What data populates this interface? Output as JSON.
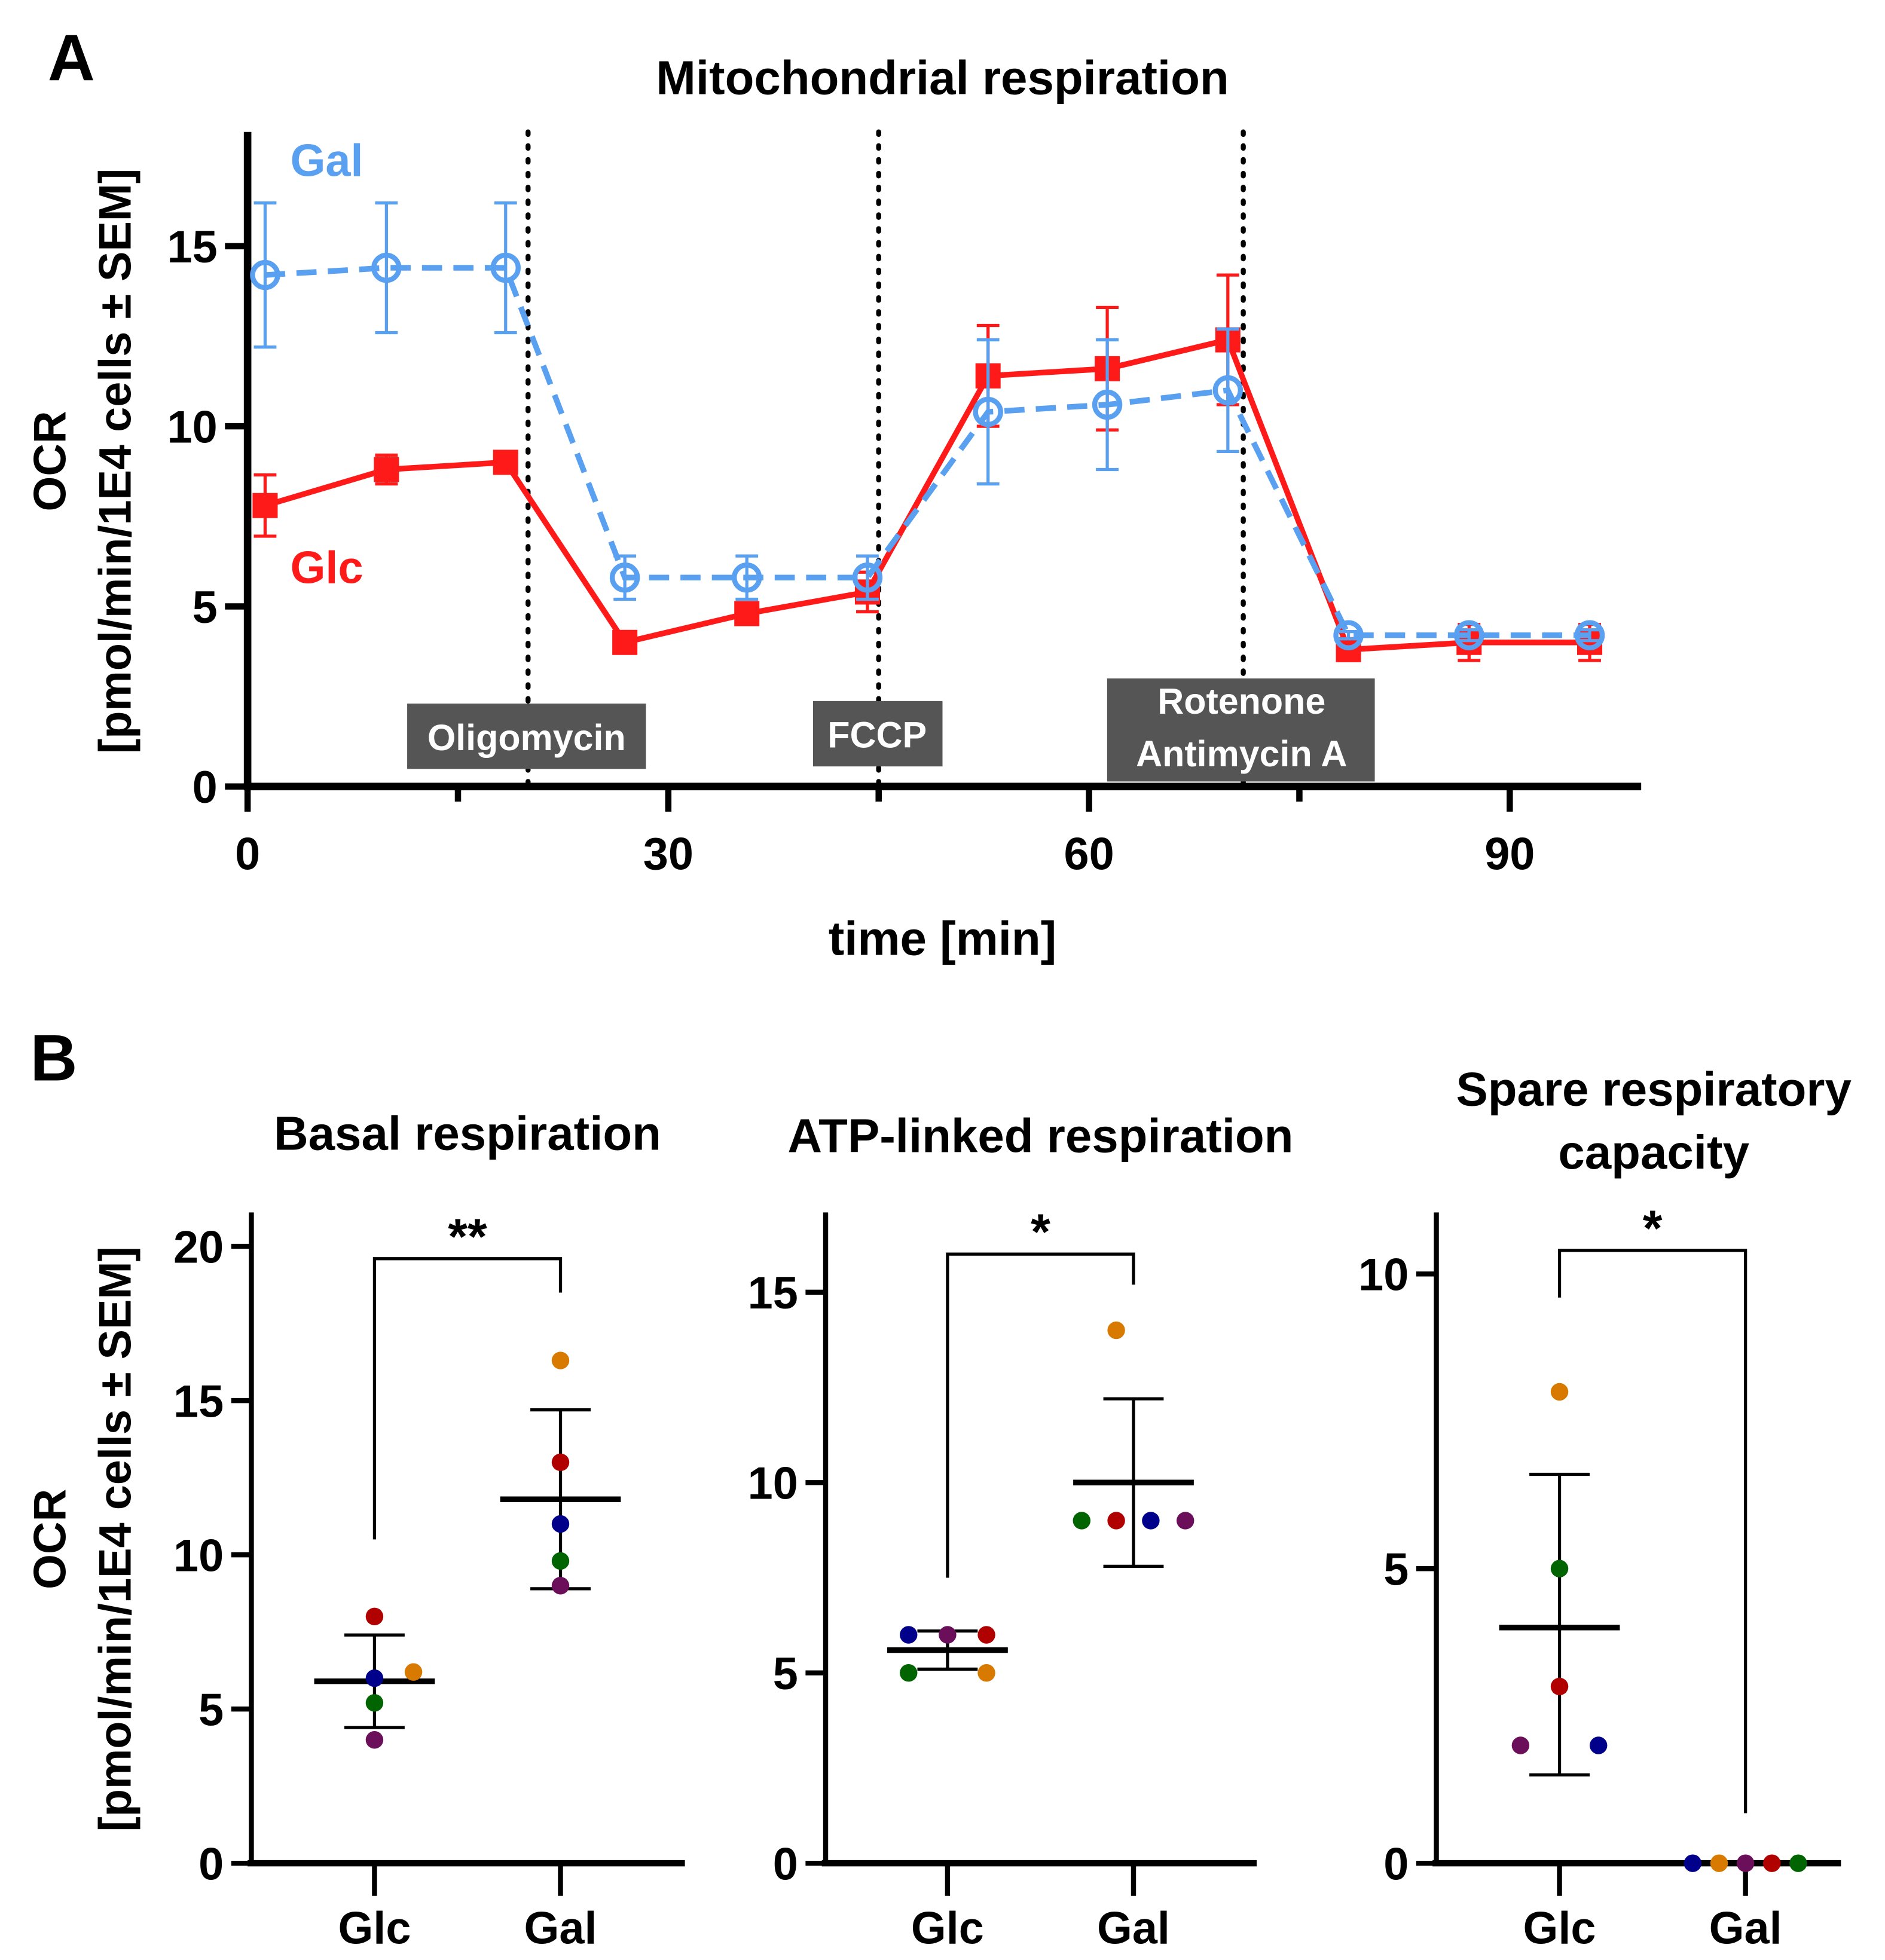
{
  "chart_data": [
    {
      "panel_label": "A",
      "type": "line",
      "title": "Mitochondrial respiration",
      "xlabel": "time [min]",
      "ylabel_line1": "OCR",
      "ylabel_line2": "[pmol/min/1E4 cells ± SEM]",
      "xlim": [
        0,
        99
      ],
      "ylim": [
        0,
        18
      ],
      "xticks": [
        0,
        30,
        60,
        90
      ],
      "xticks_minor": [
        15,
        45,
        75
      ],
      "yticks": [
        0,
        5,
        10,
        15
      ],
      "x": [
        1.25,
        9.9,
        18.4,
        26.9,
        35.6,
        44.2,
        52.8,
        61.3,
        69.9,
        78.5,
        87.1,
        95.7
      ],
      "series": [
        {
          "name": "Glc",
          "color": "#ff1a1a",
          "style": "solid",
          "marker": "square",
          "values": [
            7.8,
            8.8,
            9.0,
            4.0,
            4.8,
            5.4,
            11.4,
            11.6,
            12.4,
            3.8,
            4.0,
            4.0
          ],
          "sem": [
            0.85,
            0.4,
            0.3,
            0.15,
            0.15,
            0.55,
            1.4,
            1.7,
            1.8,
            0.15,
            0.5,
            0.5
          ]
        },
        {
          "name": "Gal",
          "color": "#5aa0f0",
          "style": "dashed",
          "marker": "open-circle",
          "values": [
            14.2,
            14.4,
            14.4,
            5.8,
            5.8,
            5.8,
            10.4,
            10.6,
            11.0,
            4.2,
            4.2,
            4.2
          ],
          "sem": [
            2.0,
            1.8,
            1.8,
            0.6,
            0.6,
            0.6,
            2.0,
            1.8,
            1.7,
            0.1,
            0.15,
            0.15
          ]
        }
      ],
      "injections": [
        {
          "time": 20,
          "label": "Oligomycin"
        },
        {
          "time": 45,
          "label": "FCCP"
        },
        {
          "time": 71,
          "label": "Rotenone Antimycin A",
          "line1": "Rotenone",
          "line2": "Antimycin A"
        }
      ]
    },
    {
      "panel_label": "B",
      "type": "scatter",
      "title": "Basal respiration",
      "ylabel_line1": "OCR",
      "ylabel_line2": "[pmol/min/1E4 cells ± SEM]",
      "categories": [
        "Glc",
        "Gal"
      ],
      "ylim": [
        0,
        21
      ],
      "yticks": [
        0,
        5,
        10,
        15,
        20
      ],
      "significance": "**",
      "groups": [
        {
          "name": "Glc",
          "mean": 5.9,
          "sem_low": 4.4,
          "sem_high": 7.4,
          "points": [
            {
              "v": 8.0,
              "c": "#b00000"
            },
            {
              "v": 6.0,
              "c": "#00008b"
            },
            {
              "v": 6.2,
              "c": "#d97a00",
              "off": 1
            },
            {
              "v": 5.2,
              "c": "#006400"
            },
            {
              "v": 4.0,
              "c": "#6b0f5a"
            }
          ]
        },
        {
          "name": "Gal",
          "mean": 11.8,
          "sem_low": 8.9,
          "sem_high": 14.7,
          "points": [
            {
              "v": 16.3,
              "c": "#d97a00"
            },
            {
              "v": 13.0,
              "c": "#b00000"
            },
            {
              "v": 11.0,
              "c": "#00008b"
            },
            {
              "v": 9.8,
              "c": "#006400"
            },
            {
              "v": 9.0,
              "c": "#6b0f5a"
            }
          ]
        }
      ],
      "bracket": {
        "top": 19.6,
        "left_end": 10.5,
        "right_end": 18.5
      }
    },
    {
      "type": "scatter",
      "title": "ATP-linked respiration",
      "categories": [
        "Glc",
        "Gal"
      ],
      "ylim": [
        0,
        15.6
      ],
      "yticks": [
        0,
        5,
        10,
        15
      ],
      "significance": "*",
      "groups": [
        {
          "name": "Glc",
          "mean": 5.6,
          "sem_low": 5.1,
          "sem_high": 6.1,
          "points": [
            {
              "v": 6.0,
              "c": "#00008b",
              "off": -1
            },
            {
              "v": 6.0,
              "c": "#6b0f5a",
              "off": 0
            },
            {
              "v": 6.0,
              "c": "#b00000",
              "off": 1
            },
            {
              "v": 5.0,
              "c": "#006400",
              "off": -1
            },
            {
              "v": 5.0,
              "c": "#d97a00",
              "off": 1
            }
          ]
        },
        {
          "name": "Gal",
          "mean": 10.0,
          "sem_low": 7.8,
          "sem_high": 12.2,
          "points": [
            {
              "v": 14.0,
              "c": "#d97a00",
              "off": -0.5
            },
            {
              "v": 9.0,
              "c": "#006400",
              "off": -1.5
            },
            {
              "v": 9.0,
              "c": "#b00000",
              "off": -0.5
            },
            {
              "v": 9.0,
              "c": "#00008b",
              "off": 0.5
            },
            {
              "v": 9.0,
              "c": "#6b0f5a",
              "off": 1.5
            }
          ]
        }
      ],
      "bracket": {
        "top": 16.0,
        "left_end": 7.5,
        "right_end": 15.2
      }
    },
    {
      "type": "scatter",
      "title": "Spare respiratory capacity",
      "title_line1": "Spare respiratory",
      "title_line2": "capacity",
      "categories": [
        "Glc",
        "Gal"
      ],
      "ylim": [
        0,
        10.5
      ],
      "yticks": [
        0,
        5,
        10
      ],
      "significance": "*",
      "groups": [
        {
          "name": "Glc",
          "mean": 4.0,
          "sem_low": 1.5,
          "sem_high": 6.6,
          "points": [
            {
              "v": 8.0,
              "c": "#d97a00"
            },
            {
              "v": 5.0,
              "c": "#006400"
            },
            {
              "v": 3.0,
              "c": "#b00000"
            },
            {
              "v": 2.0,
              "c": "#6b0f5a",
              "off": -1
            },
            {
              "v": 2.0,
              "c": "#00008b",
              "off": 1
            }
          ]
        },
        {
          "name": "Gal",
          "mean": 0,
          "sem_low": 0,
          "sem_high": 0,
          "points": [
            {
              "v": 0,
              "c": "#00008b",
              "off": -2
            },
            {
              "v": 0,
              "c": "#d97a00",
              "off": -1
            },
            {
              "v": 0,
              "c": "#6b0f5a",
              "off": 0
            },
            {
              "v": 0,
              "c": "#b00000",
              "off": 1
            },
            {
              "v": 0,
              "c": "#006400",
              "off": 2
            }
          ]
        }
      ],
      "bracket": {
        "top": 10.4,
        "left_end": 9.6,
        "right_end": 0.85
      }
    }
  ]
}
